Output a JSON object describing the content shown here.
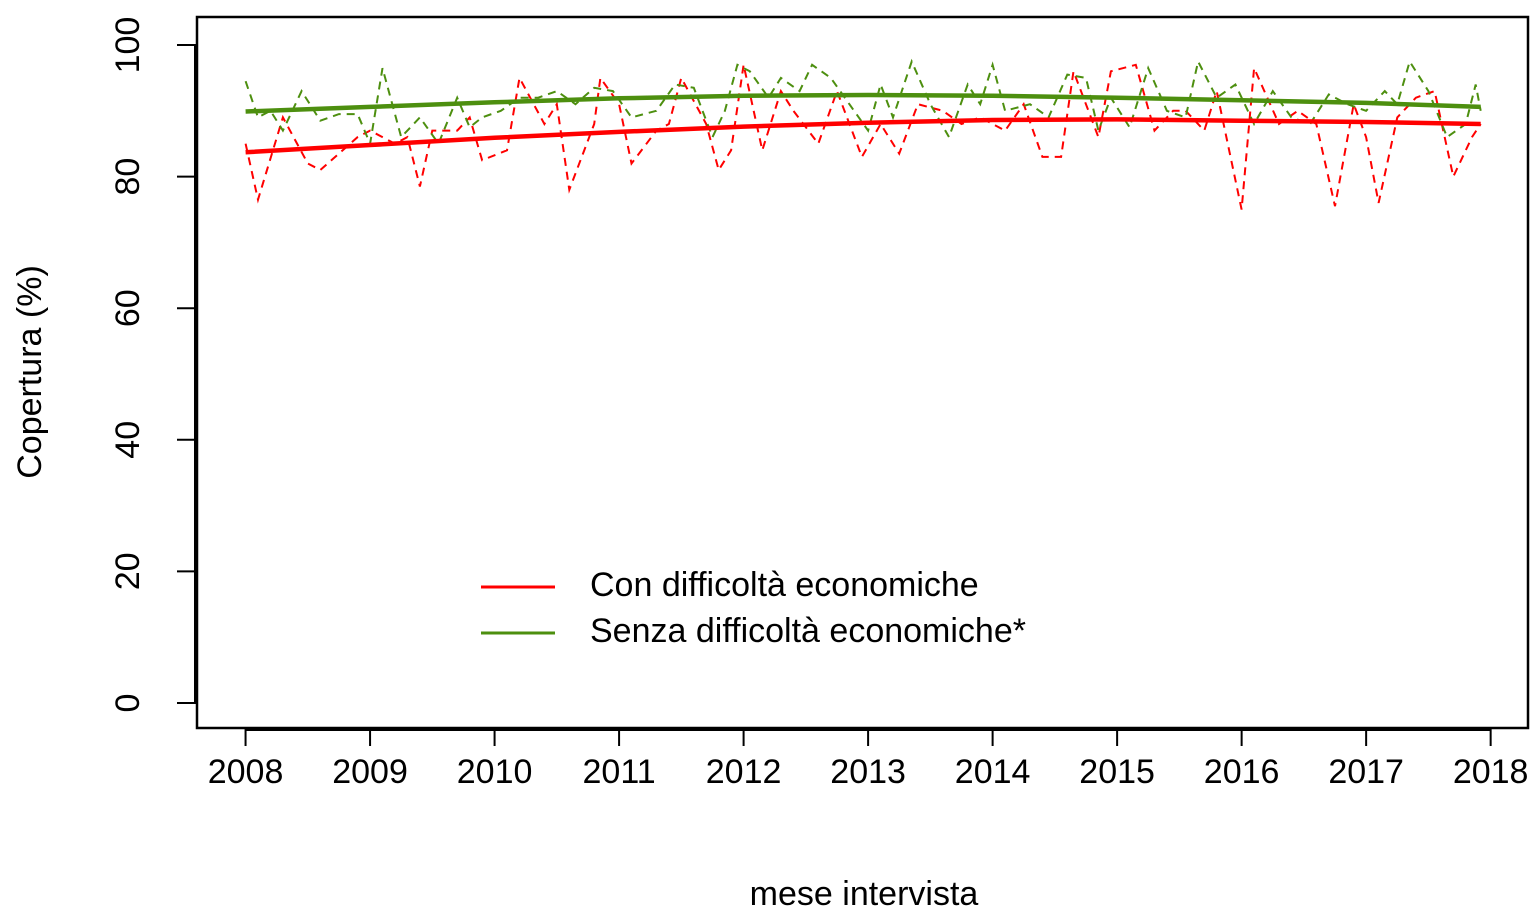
{
  "chart_data": {
    "type": "line",
    "x_label": "mese intervista",
    "y_label": "Copertura (%)",
    "xlim": [
      2007.61,
      2018.3
    ],
    "ylim": [
      -3.8,
      104.26
    ],
    "xticks": [
      2008,
      2009,
      2010,
      2011,
      2012,
      2013,
      2014,
      2015,
      2016,
      2017,
      2018
    ],
    "yticks": [
      0,
      20,
      40,
      60,
      80,
      100
    ],
    "legend": "bottom-center",
    "series": [
      {
        "color": "#ff0000",
        "style": "dashed",
        "x": [
          2008,
          2008.1,
          2008.3,
          2008.5,
          2008.6,
          2008.9,
          2009.0,
          2009.2,
          2009.3,
          2009.4,
          2009.5,
          2009.7,
          2009.8,
          2009.9,
          2010.1,
          2010.2,
          2010.4,
          2010.5,
          2010.6,
          2010.8,
          2010.85,
          2011.0,
          2011.1,
          2011.3,
          2011.4,
          2011.5,
          2011.7,
          2011.8,
          2011.9,
          2012.0,
          2012.15,
          2012.3,
          2012.4,
          2012.6,
          2012.75,
          2012.95,
          2013.1,
          2013.25,
          2013.4,
          2013.6,
          2013.75,
          2013.9,
          2014.1,
          2014.25,
          2014.4,
          2014.55,
          2014.65,
          2014.85,
          2014.95,
          2015.15,
          2015.3,
          2015.45,
          2015.55,
          2015.7,
          2015.8,
          2016.0,
          2016.1,
          2016.3,
          2016.45,
          2016.6,
          2016.75,
          2016.9,
          2017.0,
          2017.1,
          2017.25,
          2017.4,
          2017.55,
          2017.7,
          2017.85,
          2017.92
        ],
        "values": [
          85,
          76.5,
          89,
          82,
          81,
          86,
          87,
          85,
          86,
          78.5,
          87,
          87,
          89,
          82.5,
          84,
          95,
          88,
          91,
          78,
          88,
          95,
          91,
          82,
          87,
          88,
          95,
          88,
          81,
          84,
          97,
          84,
          93,
          90,
          85,
          93,
          83,
          88,
          83.5,
          91,
          90,
          88,
          89,
          87,
          91,
          83,
          83,
          96,
          86,
          96,
          97,
          87,
          90,
          90,
          87,
          93,
          75,
          96.5,
          88,
          90,
          88,
          75.5,
          91,
          86,
          76,
          89,
          92,
          93,
          80,
          86,
          88
        ]
      },
      {
        "color": "#4d8f0f",
        "style": "dashed",
        "x": [
          2008,
          2008.1,
          2008.2,
          2008.3,
          2008.45,
          2008.6,
          2008.75,
          2008.9,
          2009.0,
          2009.1,
          2009.25,
          2009.4,
          2009.55,
          2009.7,
          2009.8,
          2009.9,
          2010.05,
          2010.2,
          2010.35,
          2010.5,
          2010.65,
          2010.8,
          2010.95,
          2011.1,
          2011.3,
          2011.45,
          2011.6,
          2011.75,
          2011.85,
          2011.95,
          2012.05,
          2012.2,
          2012.3,
          2012.45,
          2012.55,
          2012.7,
          2012.85,
          2013.0,
          2013.1,
          2013.2,
          2013.35,
          2013.5,
          2013.65,
          2013.8,
          2013.9,
          2014.0,
          2014.1,
          2014.3,
          2014.45,
          2014.6,
          2014.75,
          2014.85,
          2014.95,
          2015.1,
          2015.25,
          2015.4,
          2015.55,
          2015.65,
          2015.8,
          2015.95,
          2016.1,
          2016.25,
          2016.4,
          2016.55,
          2016.7,
          2016.85,
          2017.0,
          2017.15,
          2017.25,
          2017.35,
          2017.5,
          2017.65,
          2017.8,
          2017.88,
          2017.92
        ],
        "values": [
          94.5,
          89,
          90,
          87,
          93,
          88.5,
          89.5,
          89.5,
          85,
          96.5,
          86,
          89,
          85,
          92,
          87.5,
          89,
          90,
          92,
          92,
          93,
          91,
          93.5,
          93,
          89,
          90,
          94,
          93.5,
          86,
          90,
          97,
          96,
          92,
          95,
          93,
          97,
          95,
          91,
          87,
          94,
          89,
          97.5,
          91,
          86,
          94,
          91,
          97,
          90,
          91,
          89,
          95.5,
          95,
          87,
          92,
          87.5,
          96.5,
          90,
          89,
          97.5,
          92,
          94,
          88,
          93,
          89,
          88,
          92.5,
          91,
          90,
          93,
          91,
          97.5,
          93,
          86,
          88,
          94,
          90
        ]
      },
      {
        "name": "Con difficoltà economiche",
        "color": "#ff0000",
        "style": "solid",
        "x": [
          2008,
          2009,
          2010,
          2011,
          2012,
          2013,
          2014,
          2015,
          2016,
          2017,
          2017.92
        ],
        "values": [
          83.7,
          84.8,
          85.9,
          86.8,
          87.6,
          88.2,
          88.6,
          88.7,
          88.5,
          88.3,
          88.0
        ]
      },
      {
        "name": "Senza difficoltà economiche*",
        "color": "#4d8f0f",
        "style": "solid",
        "x": [
          2008,
          2009,
          2010,
          2011,
          2012,
          2013,
          2014,
          2015,
          2016,
          2017,
          2017.92
        ],
        "values": [
          89.9,
          90.6,
          91.3,
          91.9,
          92.3,
          92.4,
          92.3,
          92.0,
          91.6,
          91.2,
          90.6
        ]
      }
    ]
  }
}
